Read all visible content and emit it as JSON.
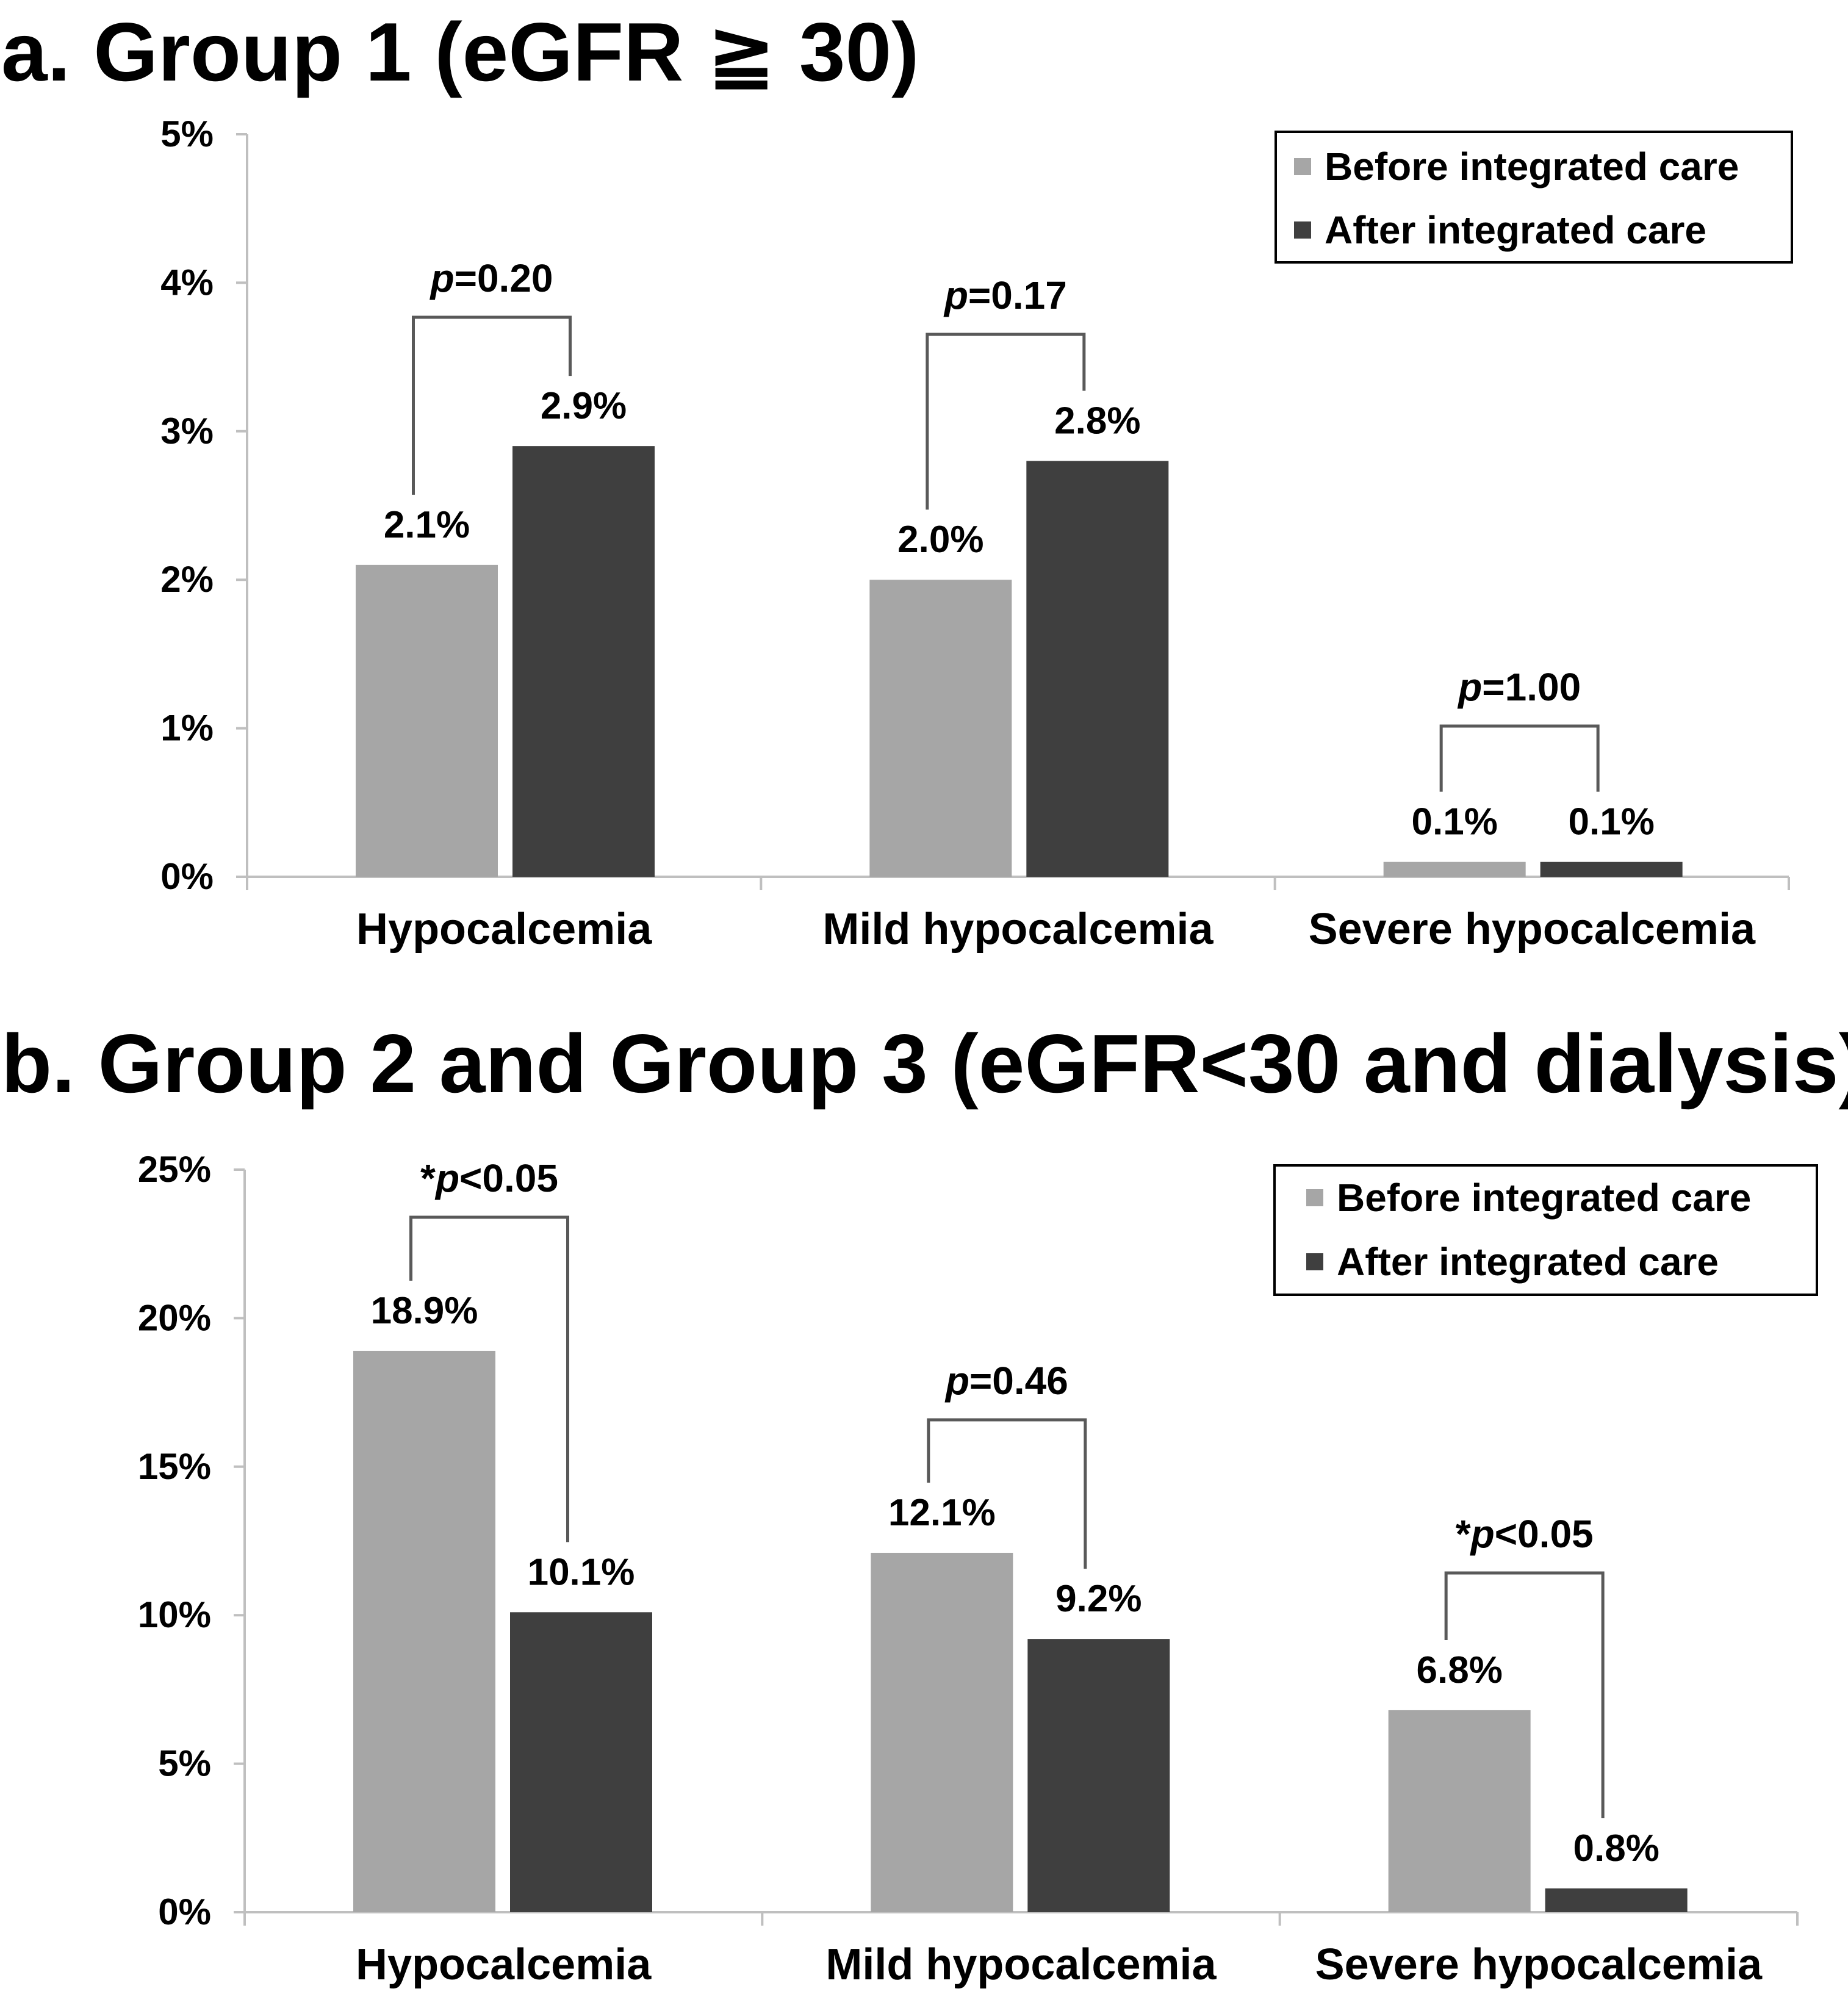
{
  "chart_data": [
    {
      "type": "bar",
      "title": "a. Group 1 (eGFR ≧ 30)",
      "categories": [
        "Hypocalcemia",
        "Mild hypocalcemia",
        "Severe hypocalcemia"
      ],
      "series": [
        {
          "name": "Before integrated care",
          "color": "#a6a6a6",
          "values": [
            2.1,
            2.0,
            0.1
          ],
          "labels": [
            "2.1%",
            "2.0%",
            "0.1%"
          ]
        },
        {
          "name": "After integrated care",
          "color": "#3f3f3f",
          "values": [
            2.9,
            2.8,
            0.1
          ],
          "labels": [
            "2.9%",
            "2.8%",
            "0.1%"
          ]
        }
      ],
      "ylim": [
        0,
        5
      ],
      "yticks": [
        0,
        1,
        2,
        3,
        4,
        5
      ],
      "ytick_labels": [
        "0%",
        "1%",
        "2%",
        "3%",
        "4%",
        "5%"
      ],
      "xlabel": "",
      "ylabel": "",
      "p_values": [
        {
          "star": "",
          "p": "p",
          "rest": "=0.20"
        },
        {
          "star": "",
          "p": "p",
          "rest": "=0.17"
        },
        {
          "star": "",
          "p": "p",
          "rest": "=1.00"
        }
      ],
      "legend_position": "top-right"
    },
    {
      "type": "bar",
      "title": "b. Group 2 and Group 3 (eGFR<30 and dialysis)",
      "categories": [
        "Hypocalcemia",
        "Mild hypocalcemia",
        "Severe hypocalcemia"
      ],
      "series": [
        {
          "name": "Before integrated care",
          "color": "#a6a6a6",
          "values": [
            18.9,
            12.1,
            6.8
          ],
          "labels": [
            "18.9%",
            "12.1%",
            "6.8%"
          ]
        },
        {
          "name": "After integrated care",
          "color": "#3f3f3f",
          "values": [
            10.1,
            9.2,
            0.8
          ],
          "labels": [
            "10.1%",
            "9.2%",
            "0.8%"
          ]
        }
      ],
      "ylim": [
        0,
        25
      ],
      "yticks": [
        0,
        5,
        10,
        15,
        20,
        25
      ],
      "ytick_labels": [
        "0%",
        "5%",
        "10%",
        "15%",
        "20%",
        "25%"
      ],
      "xlabel": "",
      "ylabel": "",
      "p_values": [
        {
          "star": "*",
          "p": "p",
          "rest": "<0.05"
        },
        {
          "star": "",
          "p": "p",
          "rest": "=0.46"
        },
        {
          "star": "*",
          "p": "p",
          "rest": "<0.05"
        }
      ],
      "legend_position": "top-right"
    }
  ]
}
